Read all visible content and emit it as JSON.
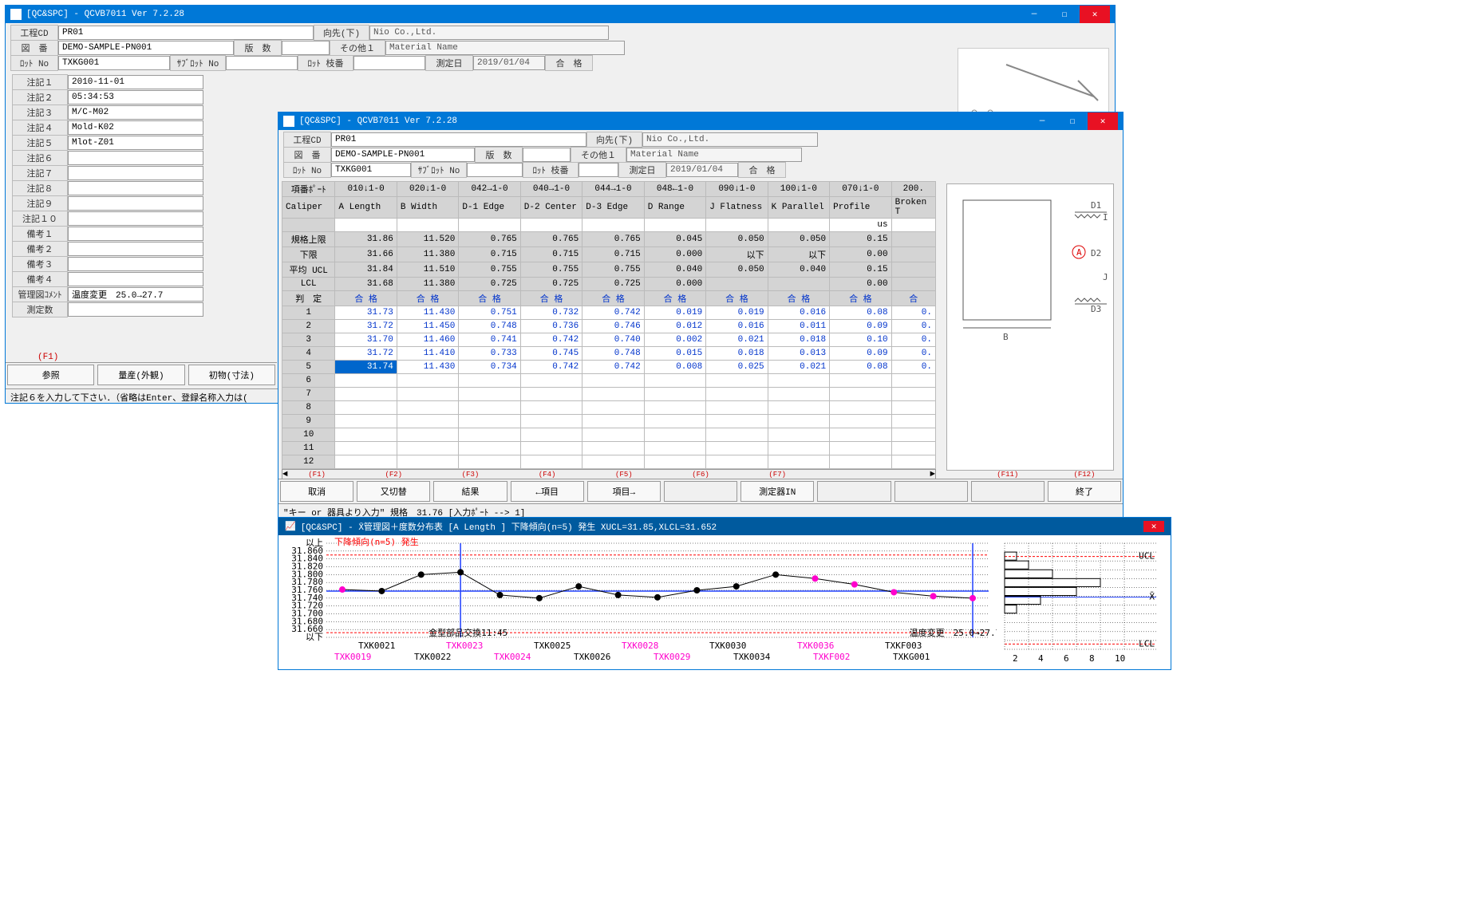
{
  "win1": {
    "title": "[QC&SPC]  - QCVB7011 Ver 7.2.28",
    "fields": {
      "kouteiCD_lbl": "工程CD",
      "kouteiCD": "PR01",
      "mukosaki_lbl": "向先(下)",
      "mukosaki": "Nio Co.,Ltd.",
      "zuban_lbl": "図　番",
      "zuban": "DEMO-SAMPLE-PN001",
      "hansu_lbl": "版　数",
      "sonota_lbl": "その他１",
      "sonota": "Material Name",
      "lotno_lbl": "ﾛｯﾄ No",
      "lotno": "TXKG001",
      "sublot_lbl": "ｻﾌﾞﾛｯﾄ No",
      "loteda_lbl": "ﾛｯﾄ 枝番",
      "sokutei_lbl": "測定日",
      "sokutei": "2019/01/04",
      "goukaku_lbl": "合　格"
    },
    "notes_lbl": [
      "注記１",
      "注記２",
      "注記３",
      "注記４",
      "注記５",
      "注記６",
      "注記７",
      "注記８",
      "注記９",
      "注記１０",
      "備考１",
      "備考２",
      "備考３",
      "備考４",
      "管理図ｺﾒﾝﾄ",
      "測定数"
    ],
    "notes_val": [
      "2010-11-01",
      "05:34:53",
      "M/C-M02",
      "Mold-K02",
      "Mlot-Z01",
      "",
      "",
      "",
      "",
      "",
      "",
      "",
      "",
      "",
      "温度変更　25.0→27.7",
      ""
    ],
    "fkeys": [
      "(F1)",
      "(F2)",
      "(F3)"
    ],
    "fbtns": [
      "参照",
      "量産(外観)",
      "初物(寸法)"
    ],
    "status": "注記６を入力して下さい．（省略はEnter、登録名称入力は("
  },
  "win2": {
    "title": "[QC&SPC]  - QCVB7011 Ver 7.2.28",
    "fields": {
      "kouteiCD_lbl": "工程CD",
      "kouteiCD": "PR01",
      "mukosaki_lbl": "向先(下)",
      "mukosaki": "Nio Co.,Ltd.",
      "zuban_lbl": "図　番",
      "zuban": "DEMO-SAMPLE-PN001",
      "hansu_lbl": "版　数",
      "sonota_lbl": "その他１",
      "sonota": "Material Name",
      "lotno_lbl": "ﾛｯﾄ No",
      "lotno": "TXKG001",
      "sublot_lbl": "ｻﾌﾞﾛｯﾄ No",
      "loteda_lbl": "ﾛｯﾄ 枝番",
      "sokutei_lbl": "測定日",
      "sokutei": "2019/01/04",
      "goukaku_lbl": "合　格"
    },
    "grid": {
      "colhdr_top": [
        "項番ﾎﾟｰﾄ",
        "010↓1-0",
        "020↓1-0",
        "042→1-0",
        "040→1-0",
        "044→1-0",
        "048←1-0",
        "090↓1-0",
        "100↓1-0",
        "070↓1-0",
        "200."
      ],
      "colhdr_bot": [
        "Caliper",
        "A Length",
        "B Width",
        "D-1 Edge",
        "D-2 Center",
        "D-3 Edge",
        "D Range",
        "J Flatness",
        "K Parallel",
        "Profile",
        "Broken T"
      ],
      "unit_row": [
        "",
        "",
        "",
        "",
        "",
        "",
        "",
        "",
        "",
        "us",
        ""
      ],
      "spec_rows": [
        [
          "規格上限",
          "31.86",
          "11.520",
          "0.765",
          "0.765",
          "0.765",
          "0.045",
          "0.050",
          "0.050",
          "0.15",
          ""
        ],
        [
          "下限",
          "31.66",
          "11.380",
          "0.715",
          "0.715",
          "0.715",
          "0.000",
          "以下",
          "以下",
          "0.00",
          ""
        ],
        [
          "平均 UCL",
          "31.84",
          "11.510",
          "0.755",
          "0.755",
          "0.755",
          "0.040",
          "0.050",
          "0.040",
          "0.15",
          ""
        ],
        [
          "LCL",
          "31.68",
          "11.380",
          "0.725",
          "0.725",
          "0.725",
          "0.000",
          "",
          "",
          "0.00",
          ""
        ]
      ],
      "hantei_lbl": "判　定",
      "hantei": [
        "合 格",
        "合 格",
        "合 格",
        "合 格",
        "合 格",
        "合 格",
        "合 格",
        "合 格",
        "合 格",
        "合"
      ],
      "data": [
        [
          "1",
          "31.73",
          "11.430",
          "0.751",
          "0.732",
          "0.742",
          "0.019",
          "0.019",
          "0.016",
          "0.08",
          "0."
        ],
        [
          "2",
          "31.72",
          "11.450",
          "0.748",
          "0.736",
          "0.746",
          "0.012",
          "0.016",
          "0.011",
          "0.09",
          "0."
        ],
        [
          "3",
          "31.70",
          "11.460",
          "0.741",
          "0.742",
          "0.740",
          "0.002",
          "0.021",
          "0.018",
          "0.10",
          "0."
        ],
        [
          "4",
          "31.72",
          "11.410",
          "0.733",
          "0.745",
          "0.748",
          "0.015",
          "0.018",
          "0.013",
          "0.09",
          "0."
        ],
        [
          "5",
          "31.74",
          "11.430",
          "0.734",
          "0.742",
          "0.742",
          "0.008",
          "0.025",
          "0.021",
          "0.08",
          "0."
        ],
        [
          "6",
          "",
          "",
          "",
          "",
          "",
          "",
          "",
          "",
          "",
          ""
        ],
        [
          "7",
          "",
          "",
          "",
          "",
          "",
          "",
          "",
          "",
          "",
          ""
        ],
        [
          "8",
          "",
          "",
          "",
          "",
          "",
          "",
          "",
          "",
          "",
          ""
        ],
        [
          "9",
          "",
          "",
          "",
          "",
          "",
          "",
          "",
          "",
          "",
          ""
        ],
        [
          "10",
          "",
          "",
          "",
          "",
          "",
          "",
          "",
          "",
          "",
          ""
        ],
        [
          "11",
          "",
          "",
          "",
          "",
          "",
          "",
          "",
          "",
          "",
          ""
        ],
        [
          "12",
          "",
          "",
          "",
          "",
          "",
          "",
          "",
          "",
          "",
          ""
        ]
      ],
      "selected_cell": "31.74"
    },
    "fkeys": [
      "(F1)",
      "(F2)",
      "(F3)",
      "(F4)",
      "(F5)",
      "(F6)",
      "(F7)",
      "",
      "",
      "(F11)",
      "(F12)"
    ],
    "fbtns": [
      "取消",
      "又切替",
      "結果",
      "←項目",
      "項目→",
      "",
      "測定器IN",
      "",
      "",
      "",
      "終了"
    ],
    "status": "\"キー or 器具より入力\" 規格　31.76 [入力ﾎﾟｰﾄ --> 1]"
  },
  "chart": {
    "title": "[QC&SPC] - X̄管理図＋度数分布表  [A Length        ] 下降傾向(n=5) 発生 XUCL=31.85,XLCL=31.652",
    "warning": "下降傾向(n=5) 発生",
    "note1": "金型部品交換11:45",
    "note2": "温度変更　25.0→27.7",
    "ylabels": [
      "以上",
      "31.860",
      "31.840",
      "31.820",
      "31.800",
      "31.780",
      "31.760",
      "31.740",
      "31.720",
      "31.700",
      "31.680",
      "31.660",
      "以下"
    ],
    "ylim": [
      31.64,
      31.88
    ],
    "ucl": 31.85,
    "lcl": 31.652,
    "xbar": 31.758,
    "ucl_lbl": "UCL",
    "lcl_lbl": "LCL",
    "xbar_lbl": "X̄",
    "points": [
      {
        "x": 0,
        "y": 31.762,
        "c": "#ff00cc"
      },
      {
        "x": 1,
        "y": 31.758,
        "c": "#000"
      },
      {
        "x": 2,
        "y": 31.8,
        "c": "#000"
      },
      {
        "x": 3,
        "y": 31.806,
        "c": "#000"
      },
      {
        "x": 4,
        "y": 31.748,
        "c": "#000"
      },
      {
        "x": 5,
        "y": 31.74,
        "c": "#000"
      },
      {
        "x": 6,
        "y": 31.77,
        "c": "#000"
      },
      {
        "x": 7,
        "y": 31.748,
        "c": "#000"
      },
      {
        "x": 8,
        "y": 31.742,
        "c": "#000"
      },
      {
        "x": 9,
        "y": 31.76,
        "c": "#000"
      },
      {
        "x": 10,
        "y": 31.77,
        "c": "#000"
      },
      {
        "x": 11,
        "y": 31.8,
        "c": "#000"
      },
      {
        "x": 12,
        "y": 31.79,
        "c": "#ff00cc"
      },
      {
        "x": 13,
        "y": 31.775,
        "c": "#ff00cc"
      },
      {
        "x": 14,
        "y": 31.755,
        "c": "#ff00cc"
      },
      {
        "x": 15,
        "y": 31.745,
        "c": "#ff00cc"
      },
      {
        "x": 16,
        "y": 31.74,
        "c": "#ff00cc"
      }
    ],
    "vlines": [
      3,
      16
    ],
    "xlabels_top": [
      "TXK0021",
      "TXK0023",
      "TXK0025",
      "TXK0028",
      "TXK0030",
      "TXK0036",
      "TXKF003"
    ],
    "xlabels_top_c": [
      "#000",
      "#ff00cc",
      "#000",
      "#ff00cc",
      "#000",
      "#ff00cc",
      "#000"
    ],
    "xlabels_bot": [
      "TXK0019",
      "TXK0022",
      "TXK0024",
      "TXK0026",
      "TXK0029",
      "TXK0034",
      "TXKF002",
      "TXKG001"
    ],
    "xlabels_bot_c": [
      "#ff00cc",
      "#000",
      "#ff00cc",
      "#000",
      "#ff00cc",
      "#000",
      "#ff00cc",
      "#000"
    ],
    "hist_x": [
      "2",
      "4",
      "6",
      "8",
      "10"
    ],
    "hist_bars": [
      0,
      1,
      2,
      4,
      8,
      6,
      3,
      1,
      0,
      0,
      0,
      0
    ]
  },
  "colors": {
    "titlebar": "#0078d7",
    "chartbar": "#005a9e",
    "close": "#e81123",
    "blue_text": "#0033cc",
    "red": "#ff0000",
    "magenta": "#ff00cc",
    "grid": "#d4d4d4",
    "border": "#999999"
  }
}
